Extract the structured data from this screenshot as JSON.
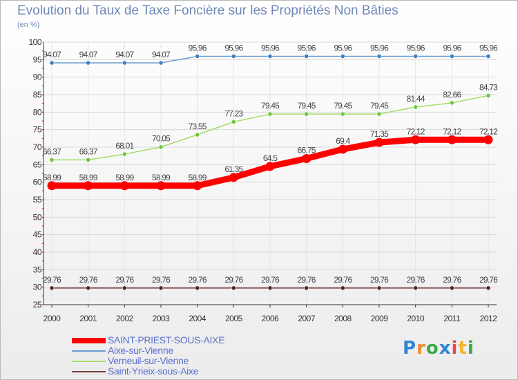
{
  "chart_data": {
    "type": "line",
    "title": "Evolution du Taux de Taxe Foncière sur les Propriétés Non Bâties",
    "subtitle": "(en %)",
    "xlabel": "",
    "ylabel": "",
    "x": [
      "2000",
      "2001",
      "2002",
      "2003",
      "2004",
      "2005",
      "2006",
      "2007",
      "2008",
      "2009",
      "2010",
      "2011",
      "2012"
    ],
    "ylim": [
      25,
      100
    ],
    "yticks": [
      25,
      30,
      35,
      40,
      45,
      50,
      55,
      60,
      65,
      70,
      75,
      80,
      85,
      90,
      95,
      100
    ],
    "grid": true,
    "series": [
      {
        "name": "Aixe-sur-Vienne",
        "color": "#6a9bd1",
        "marker": "#3c7fc0",
        "values": [
          94.07,
          94.07,
          94.07,
          94.07,
          95.96,
          95.96,
          95.96,
          95.96,
          95.96,
          95.96,
          95.96,
          95.96,
          95.96
        ],
        "labels": [
          "94.07",
          "94.07",
          "94.07",
          "94.07",
          "95.96",
          "95.96",
          "95.96",
          "95.96",
          "95.96",
          "95.96",
          "95.96",
          "95.96",
          "95.96"
        ]
      },
      {
        "name": "Verneuil-sur-Vienne",
        "color": "#a6dc6a",
        "marker": "#72c43c",
        "values": [
          66.37,
          66.37,
          68.01,
          70.05,
          73.55,
          77.23,
          79.45,
          79.45,
          79.45,
          79.45,
          81.44,
          82.66,
          84.73
        ],
        "labels": [
          "66.37",
          "66.37",
          "68.01",
          "70.05",
          "73.55",
          "77.23",
          "79.45",
          "79.45",
          "79.45",
          "79.45",
          "81.44",
          "82.66",
          "84.73"
        ]
      },
      {
        "name": "SAINT-PRIEST-SOUS-AIXE",
        "color": "#ff0000",
        "marker": "#ff0000",
        "values": [
          58.99,
          58.99,
          58.99,
          58.99,
          58.99,
          61.35,
          64.5,
          66.75,
          69.4,
          71.35,
          72.12,
          72.12,
          72.12
        ],
        "labels": [
          "58.99",
          "58.99",
          "58.99",
          "58.99",
          "58.99",
          "61.35",
          "64.5",
          "66.75",
          "69.4",
          "71.35",
          "72.12",
          "72.12",
          "72.12"
        ]
      },
      {
        "name": "Saint-Yrieix-sous-Aixe",
        "color": "#7a3a3a",
        "marker": "#5a2222",
        "values": [
          29.76,
          29.76,
          29.76,
          29.76,
          29.76,
          29.76,
          29.76,
          29.76,
          29.76,
          29.76,
          29.76,
          29.76,
          29.76
        ],
        "labels": [
          "29.76",
          "29.76",
          "29.76",
          "29.76",
          "29.76",
          "29.76",
          "29.76",
          "29.76",
          "29.76",
          "29.76",
          "29.76",
          "29.76",
          "29.76"
        ]
      }
    ],
    "legend": {
      "position": "bottom-left",
      "entries": [
        {
          "name": "SAINT-PRIEST-SOUS-AIXE",
          "color": "#ff0000",
          "style": "thick"
        },
        {
          "name": "Aixe-sur-Vienne",
          "color": "#6a9bd1",
          "style": "thin"
        },
        {
          "name": "Verneuil-sur-Vienne",
          "color": "#a6dc6a",
          "style": "thin"
        },
        {
          "name": "Saint-Yrieix-sous-Aixe",
          "color": "#7a3a3a",
          "style": "thin"
        }
      ]
    }
  },
  "logo": {
    "letters": [
      "P",
      "r",
      "o",
      "x",
      "i",
      "t",
      "i"
    ],
    "colors": [
      "#2f86d6",
      "#f08a2c",
      "#3aaa48",
      "#2f86d6",
      "#e64a4a",
      "#f2b632",
      "#3aaa48"
    ]
  }
}
